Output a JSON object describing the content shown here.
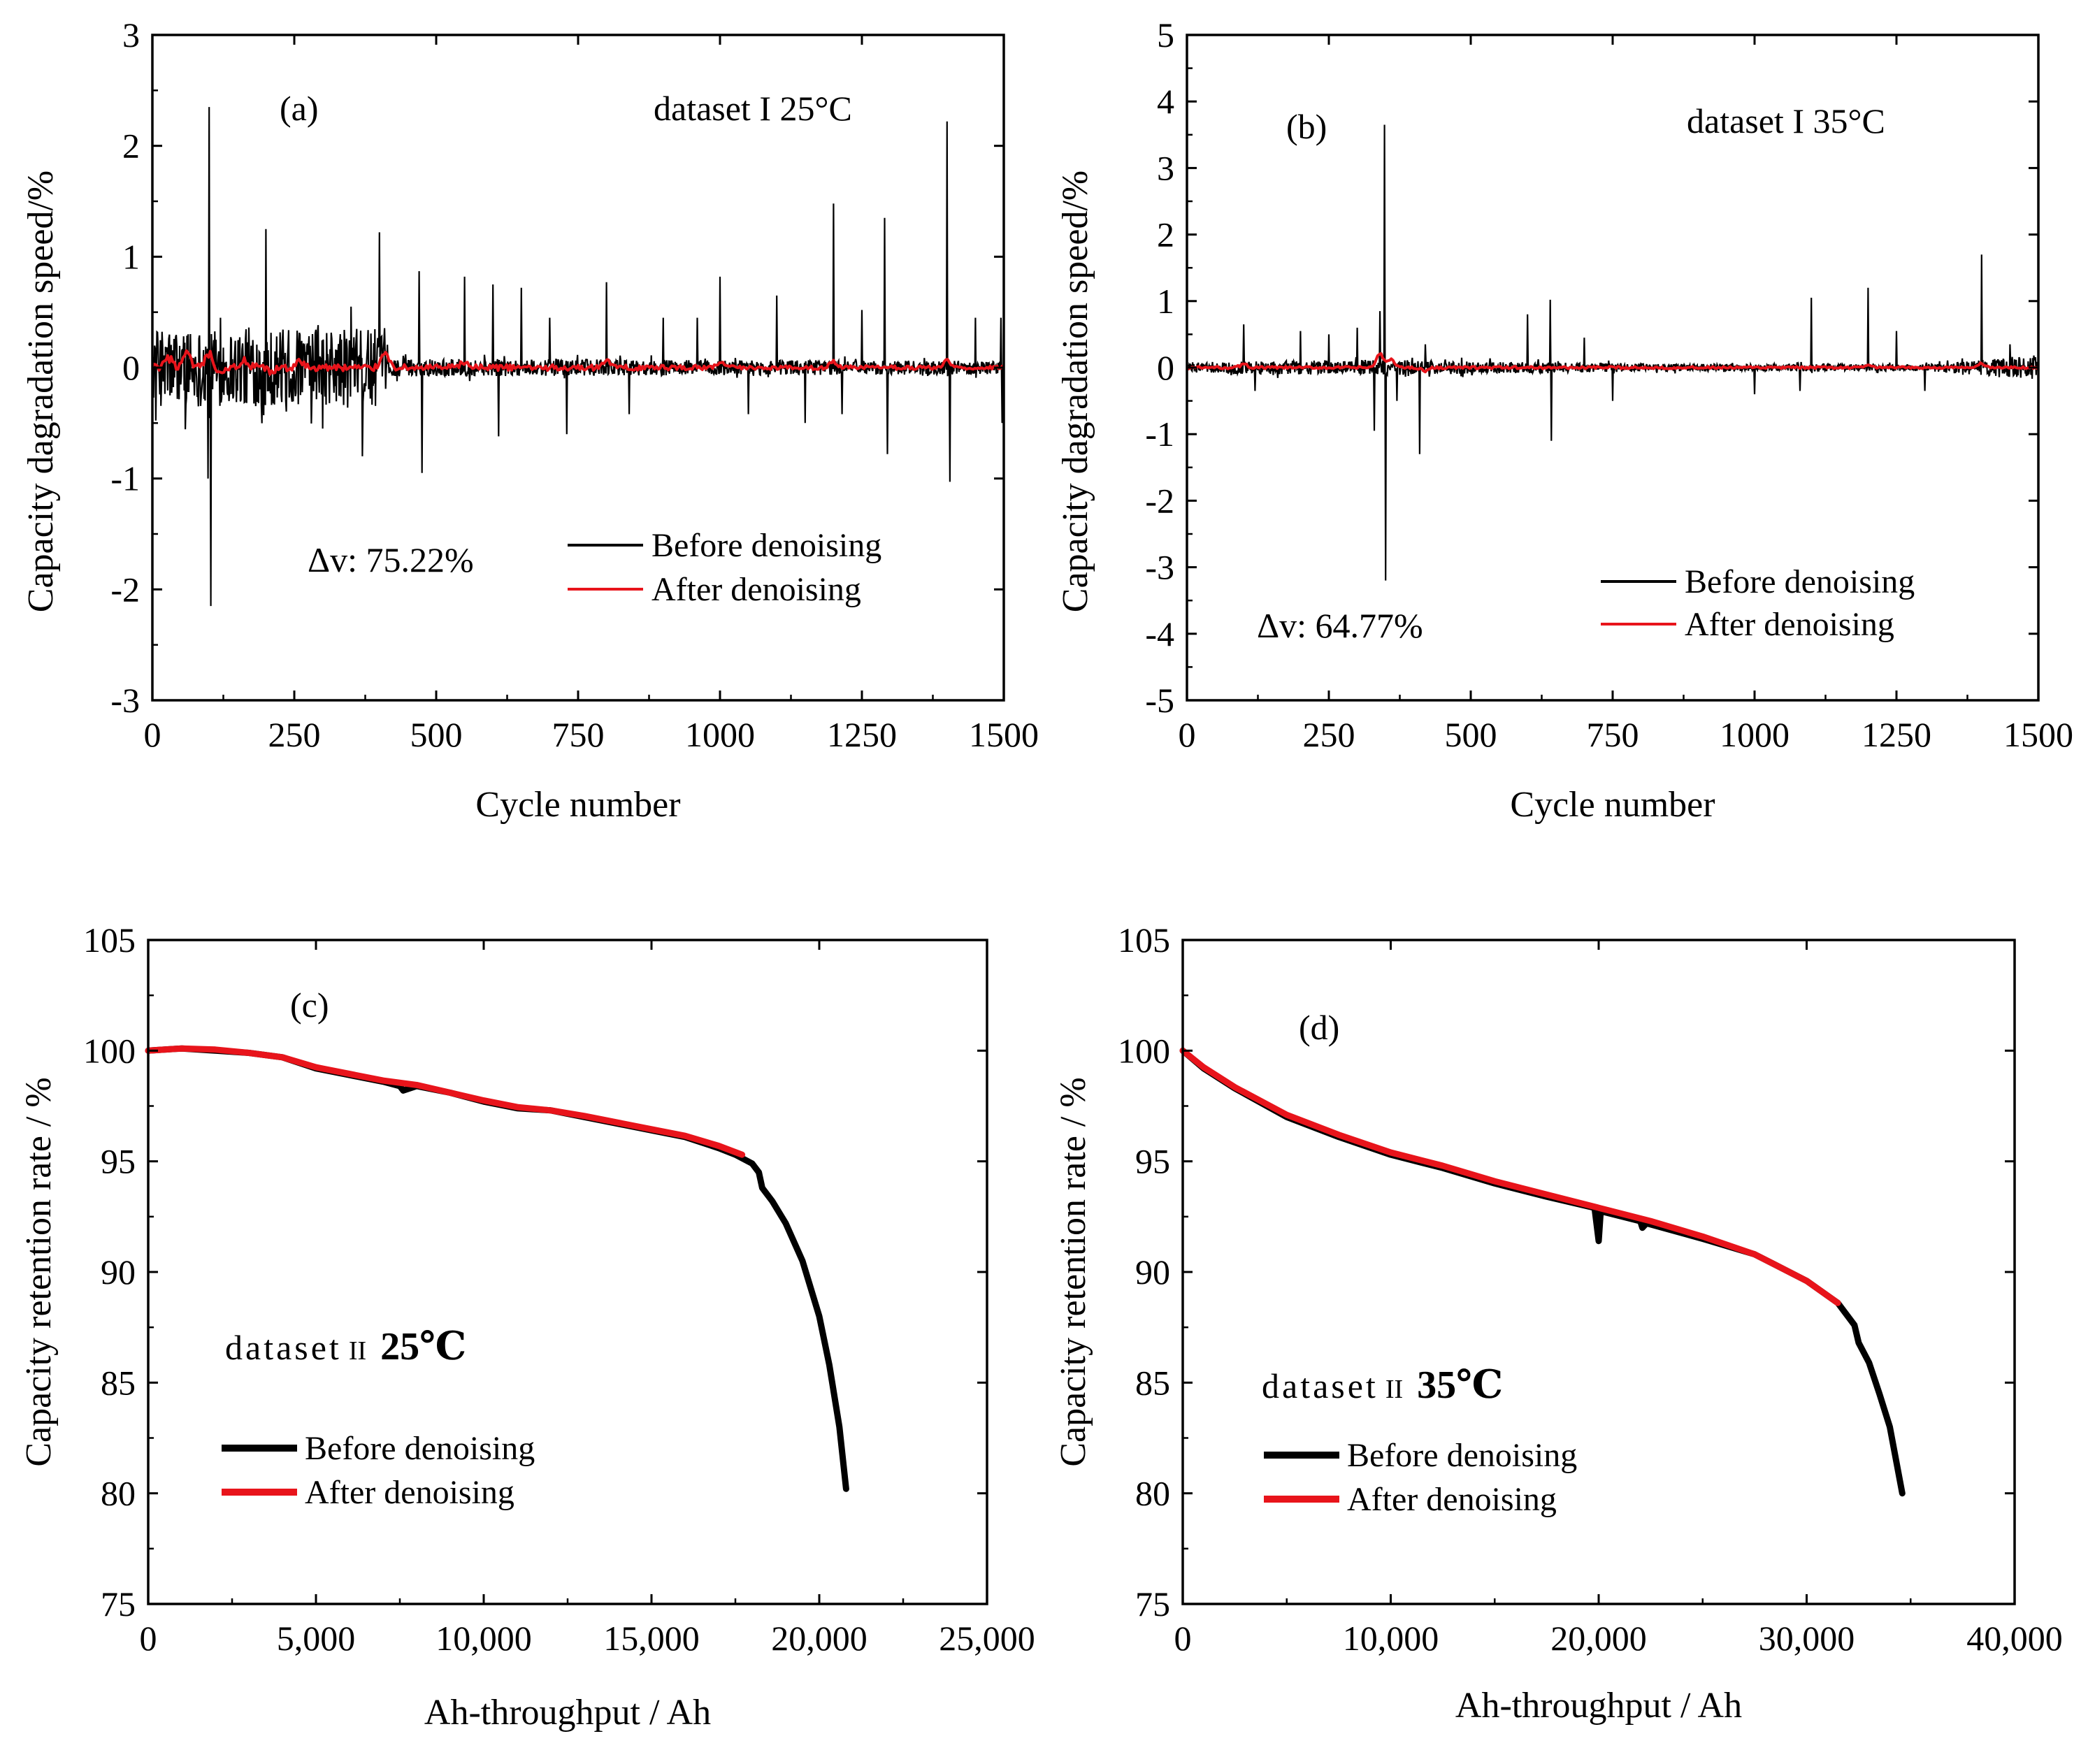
{
  "chart_data": [
    {
      "id": "a",
      "type": "line",
      "panel_label": "(a)",
      "title": "dataset I 25°C",
      "annotation": "Δv: 75.22%",
      "xlabel": "Cycle number",
      "ylabel": "Capacity dagradation speed/%",
      "xlim": [
        0,
        1500
      ],
      "ylim": [
        -3,
        3
      ],
      "xticks": [
        0,
        250,
        500,
        750,
        1000,
        1250,
        1500
      ],
      "xtick_labels": [
        "0",
        "250",
        "500",
        "750",
        "1000",
        "1250",
        "1500"
      ],
      "yticks": [
        -3,
        -2,
        -1,
        0,
        1,
        2,
        3
      ],
      "ytick_labels": [
        "-3",
        "-2",
        "-1",
        "0",
        "1",
        "2",
        "3"
      ],
      "legend": [
        "Before denoising",
        "After denoising"
      ],
      "colors": {
        "before": "#000000",
        "after": "#e8141b"
      },
      "series": [
        {
          "name": "Before denoising",
          "noise_profile": [
            [
              0,
              0.35
            ],
            [
              400,
              0.35
            ],
            [
              420,
              0.08
            ],
            [
              1500,
              0.06
            ]
          ],
          "spikes": [
            [
              100,
              2.35
            ],
            [
              103,
              -2.15
            ],
            [
              98,
              -1.0
            ],
            [
              120,
              0.45
            ],
            [
              200,
              1.25
            ],
            [
              300,
              -0.55
            ],
            [
              350,
              0.55
            ],
            [
              370,
              -0.8
            ],
            [
              400,
              1.22
            ],
            [
              470,
              0.87
            ],
            [
              475,
              -0.95
            ],
            [
              550,
              0.82
            ],
            [
              600,
              0.75
            ],
            [
              610,
              -0.62
            ],
            [
              650,
              0.72
            ],
            [
              700,
              0.45
            ],
            [
              730,
              -0.6
            ],
            [
              800,
              0.77
            ],
            [
              840,
              -0.42
            ],
            [
              900,
              0.45
            ],
            [
              960,
              0.45
            ],
            [
              1000,
              0.82
            ],
            [
              1050,
              -0.42
            ],
            [
              1100,
              0.65
            ],
            [
              1150,
              -0.5
            ],
            [
              1200,
              1.48
            ],
            [
              1215,
              -0.42
            ],
            [
              1250,
              0.52
            ],
            [
              1290,
              1.35
            ],
            [
              1295,
              -0.78
            ],
            [
              1400,
              2.22
            ],
            [
              1405,
              -1.03
            ],
            [
              1450,
              0.45
            ],
            [
              1495,
              0.45
            ],
            [
              1497,
              -0.5
            ]
          ]
        },
        {
          "name": "After denoising",
          "noise_profile": [
            [
              0,
              0.04
            ],
            [
              420,
              0.03
            ],
            [
              1500,
              0.015
            ]
          ],
          "bumps": [
            [
              30,
              0.08
            ],
            [
              60,
              0.12
            ],
            [
              100,
              0.12
            ],
            [
              120,
              -0.08
            ],
            [
              160,
              0.06
            ],
            [
              210,
              -0.05
            ],
            [
              260,
              0.05
            ],
            [
              410,
              0.15
            ],
            [
              550,
              0.05
            ],
            [
              800,
              0.07
            ],
            [
              1000,
              0.05
            ],
            [
              1200,
              0.05
            ],
            [
              1400,
              0.06
            ]
          ]
        }
      ]
    },
    {
      "id": "b",
      "type": "line",
      "panel_label": "(b)",
      "title": "dataset I 35°C",
      "annotation": "Δv: 64.77%",
      "xlabel": "Cycle number",
      "ylabel": "Capacity dagradation speed/%",
      "xlim": [
        0,
        1500
      ],
      "ylim": [
        -5,
        5
      ],
      "xticks": [
        0,
        250,
        500,
        750,
        1000,
        1250,
        1500
      ],
      "xtick_labels": [
        "0",
        "250",
        "500",
        "750",
        "1000",
        "1250",
        "1500"
      ],
      "yticks": [
        -5,
        -4,
        -3,
        -2,
        -1,
        0,
        1,
        2,
        3,
        4,
        5
      ],
      "ytick_labels": [
        "-5",
        "-4",
        "-3",
        "-2",
        "-1",
        "0",
        "1",
        "2",
        "3",
        "4",
        "5"
      ],
      "legend": [
        "Before denoising",
        "After denoising"
      ],
      "colors": {
        "before": "#000000",
        "after": "#e8141b"
      },
      "series": [
        {
          "name": "Before denoising",
          "noise_profile": [
            [
              0,
              0.08
            ],
            [
              300,
              0.12
            ],
            [
              450,
              0.1
            ],
            [
              800,
              0.06
            ],
            [
              1300,
              0.05
            ],
            [
              1500,
              0.18
            ]
          ],
          "spikes": [
            [
              100,
              0.65
            ],
            [
              120,
              -0.35
            ],
            [
              200,
              0.55
            ],
            [
              250,
              0.5
            ],
            [
              300,
              0.6
            ],
            [
              330,
              -0.95
            ],
            [
              340,
              0.85
            ],
            [
              348,
              3.65
            ],
            [
              350,
              -3.2
            ],
            [
              370,
              -0.5
            ],
            [
              410,
              -1.3
            ],
            [
              420,
              0.35
            ],
            [
              600,
              0.8
            ],
            [
              640,
              1.02
            ],
            [
              642,
              -1.1
            ],
            [
              700,
              0.45
            ],
            [
              750,
              -0.5
            ],
            [
              1000,
              -0.4
            ],
            [
              1080,
              -0.35
            ],
            [
              1100,
              1.05
            ],
            [
              1200,
              1.2
            ],
            [
              1250,
              0.55
            ],
            [
              1300,
              -0.35
            ],
            [
              1400,
              1.7
            ],
            [
              1450,
              0.35
            ]
          ]
        },
        {
          "name": "After denoising",
          "noise_profile": [
            [
              0,
              0.02
            ],
            [
              1500,
              0.015
            ]
          ],
          "bumps": [
            [
              100,
              0.05
            ],
            [
              340,
              0.2
            ],
            [
              360,
              0.12
            ],
            [
              420,
              -0.05
            ],
            [
              1200,
              0.04
            ],
            [
              1400,
              0.06
            ]
          ]
        }
      ]
    },
    {
      "id": "c",
      "type": "line",
      "panel_label": "(c)",
      "title_main": "dataset",
      "title_roman": "II",
      "title_temp": "25℃",
      "xlabel": "Ah-throughput / Ah",
      "ylabel": "Capacity retention rate / %",
      "xlim": [
        0,
        25000
      ],
      "ylim": [
        75,
        105
      ],
      "xticks": [
        0,
        5000,
        10000,
        15000,
        20000,
        25000
      ],
      "xtick_labels": [
        "0",
        "5,000",
        "10,000",
        "15,000",
        "20,000",
        "25,000"
      ],
      "yticks": [
        75,
        80,
        85,
        90,
        95,
        100,
        105
      ],
      "ytick_labels": [
        "75",
        "80",
        "85",
        "90",
        "95",
        "100",
        "105"
      ],
      "legend": [
        "Before denoising",
        "After denoising"
      ],
      "colors": {
        "before": "#000000",
        "after": "#e8141b"
      },
      "series": [
        {
          "name": "Before denoising",
          "x": [
            0,
            1000,
            2000,
            3000,
            4000,
            5000,
            6000,
            7000,
            7500,
            7600,
            8000,
            9000,
            10000,
            11000,
            12000,
            13000,
            14000,
            15000,
            16000,
            17000,
            17500,
            18000,
            18200,
            18300,
            18600,
            19000,
            19500,
            20000,
            20300,
            20600,
            20800
          ],
          "y": [
            100,
            100.1,
            100,
            99.9,
            99.7,
            99.2,
            98.9,
            98.6,
            98.4,
            98.2,
            98.4,
            98.1,
            97.7,
            97.4,
            97.3,
            97.0,
            96.7,
            96.4,
            96.1,
            95.6,
            95.3,
            94.9,
            94.5,
            93.8,
            93.2,
            92.2,
            90.5,
            88.0,
            85.8,
            83.0,
            80.2
          ]
        },
        {
          "name": "After denoising",
          "x": [
            0,
            1000,
            2000,
            3000,
            4000,
            5000,
            6000,
            7000,
            8000,
            9000,
            10000,
            11000,
            12000,
            13000,
            14000,
            15000,
            16000,
            17000,
            17700
          ],
          "y": [
            100,
            100.1,
            100.05,
            99.9,
            99.7,
            99.25,
            98.95,
            98.65,
            98.45,
            98.1,
            97.75,
            97.45,
            97.3,
            97.05,
            96.75,
            96.45,
            96.15,
            95.7,
            95.3
          ]
        }
      ]
    },
    {
      "id": "d",
      "type": "line",
      "panel_label": "(d)",
      "title_main": "dataset",
      "title_roman": "II",
      "title_temp": "35℃",
      "xlabel": "Ah-throughput / Ah",
      "ylabel": "Capacity retention rate / %",
      "xlim": [
        0,
        40000
      ],
      "ylim": [
        75,
        105
      ],
      "xticks": [
        0,
        10000,
        20000,
        30000,
        40000
      ],
      "xtick_labels": [
        "0",
        "10,000",
        "20,000",
        "30,000",
        "40,000"
      ],
      "yticks": [
        75,
        80,
        85,
        90,
        95,
        100,
        105
      ],
      "ytick_labels": [
        "75",
        "80",
        "85",
        "90",
        "95",
        "100",
        "105"
      ],
      "legend": [
        "Before denoising",
        "After denoising"
      ],
      "colors": {
        "before": "#000000",
        "after": "#e8141b"
      },
      "series": [
        {
          "name": "Before denoising",
          "x": [
            0,
            1000,
            2500,
            5000,
            7500,
            10000,
            12500,
            15000,
            17500,
            19800,
            20000,
            20100,
            20300,
            22000,
            22100,
            22300,
            25000,
            27500,
            30000,
            31500,
            32300,
            32500,
            33000,
            33500,
            34000,
            34300,
            34600
          ],
          "y": [
            100,
            99.2,
            98.3,
            97.0,
            96.1,
            95.3,
            94.7,
            94.0,
            93.4,
            92.9,
            91.4,
            92.8,
            92.7,
            92.3,
            92.0,
            92.2,
            91.5,
            90.8,
            89.6,
            88.6,
            87.6,
            86.8,
            85.9,
            84.5,
            83.0,
            81.5,
            80.0
          ]
        },
        {
          "name": "After denoising",
          "x": [
            0,
            1000,
            2500,
            5000,
            7500,
            10000,
            12500,
            15000,
            17500,
            20000,
            22500,
            25000,
            27500,
            30000,
            31500
          ],
          "y": [
            100,
            99.25,
            98.35,
            97.1,
            96.2,
            95.4,
            94.8,
            94.1,
            93.5,
            92.9,
            92.3,
            91.6,
            90.8,
            89.6,
            88.6
          ]
        }
      ]
    }
  ]
}
